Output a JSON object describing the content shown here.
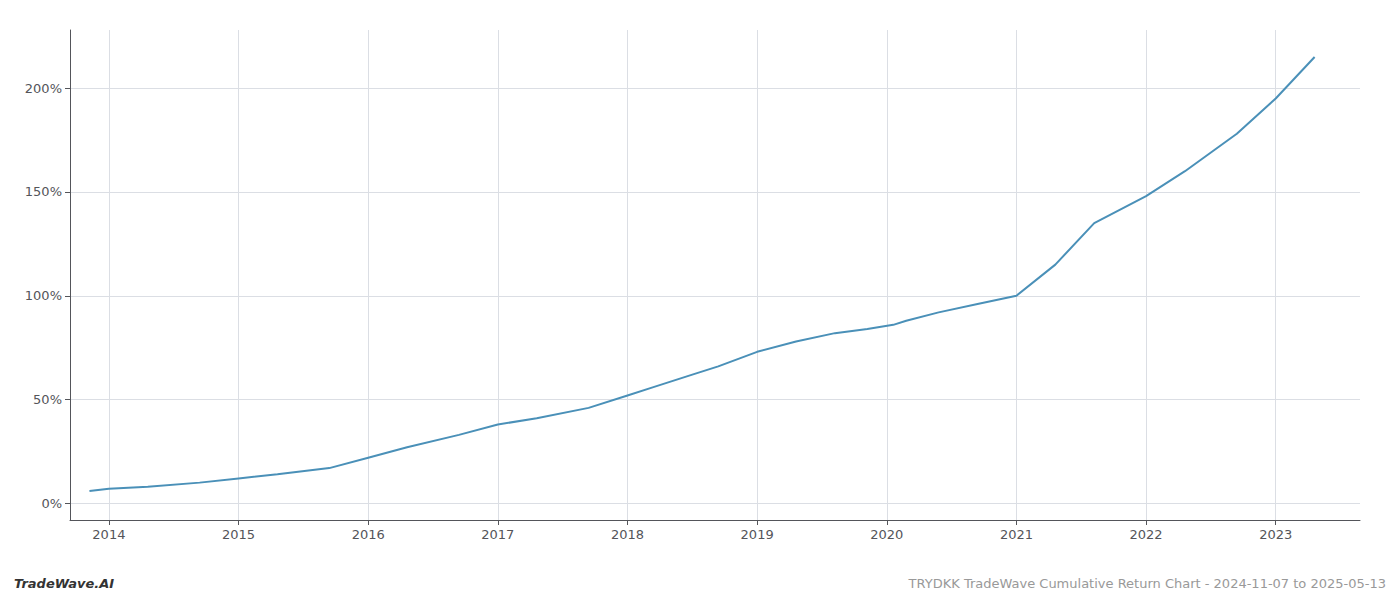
{
  "chart_data": {
    "type": "line",
    "x": [
      2013.85,
      2014.0,
      2014.3,
      2014.7,
      2015.0,
      2015.3,
      2015.7,
      2016.0,
      2016.3,
      2016.7,
      2017.0,
      2017.3,
      2017.7,
      2018.0,
      2018.2,
      2018.5,
      2018.7,
      2019.0,
      2019.3,
      2019.6,
      2019.85,
      2020.05,
      2020.15,
      2020.4,
      2020.7,
      2021.0,
      2021.3,
      2021.6,
      2022.0,
      2022.3,
      2022.7,
      2023.0,
      2023.3
    ],
    "values": [
      6,
      7,
      8,
      10,
      12,
      14,
      17,
      22,
      27,
      33,
      38,
      41,
      46,
      52,
      56,
      62,
      66,
      73,
      78,
      82,
      84,
      86,
      88,
      92,
      96,
      100,
      115,
      135,
      148,
      160,
      178,
      195,
      215
    ],
    "color": "#4a90b8",
    "xlim": [
      2013.7,
      2023.65
    ],
    "xticks": [
      2014,
      2015,
      2016,
      2017,
      2018,
      2019,
      2020,
      2021,
      2022,
      2023
    ],
    "ylim": [
      -8,
      228
    ],
    "yticks": [
      {
        "value": 0,
        "label": "0%"
      },
      {
        "value": 50,
        "label": "50%"
      },
      {
        "value": 100,
        "label": "100%"
      },
      {
        "value": 150,
        "label": "150%"
      },
      {
        "value": 200,
        "label": "200%"
      }
    ],
    "grid": true,
    "annotations": [
      "TradeWave.AI",
      "TRYDKK TradeWave Cumulative Return Chart - 2024-11-07 to 2025-05-13"
    ]
  }
}
